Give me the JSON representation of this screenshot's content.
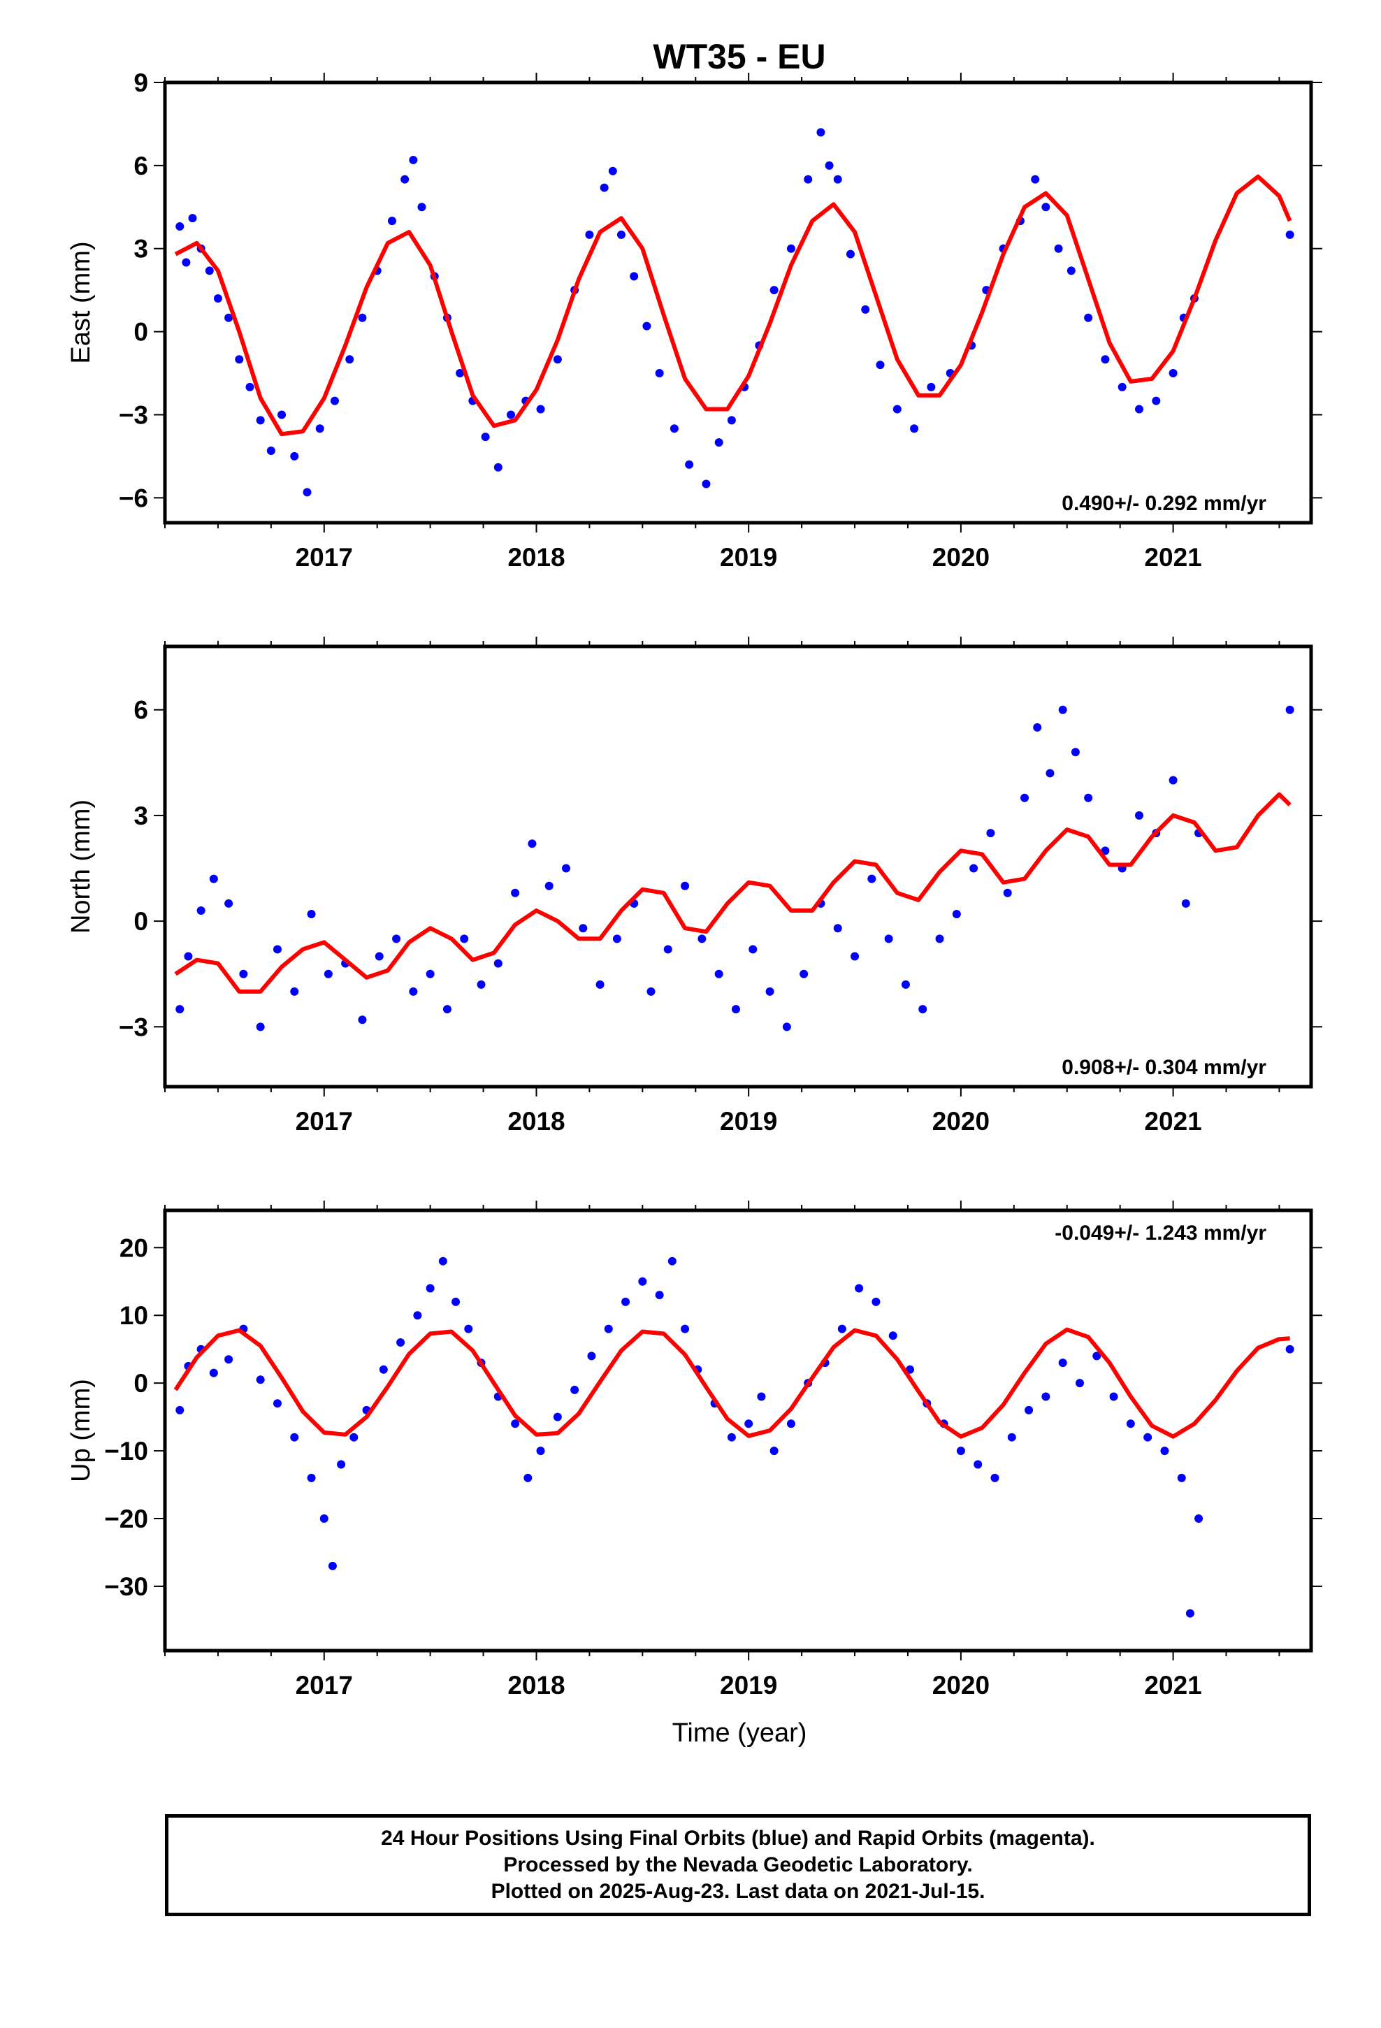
{
  "title": "WT35 - EU",
  "colors": {
    "points": "#0000ff",
    "fit": "#ff0000",
    "frame": "#000000"
  },
  "xaxis": {
    "label": "Time (year)",
    "range": [
      2016.25,
      2021.65
    ],
    "ticks": [
      2017,
      2018,
      2019,
      2020,
      2021
    ]
  },
  "chart_data": [
    {
      "type": "scatter",
      "component": "East",
      "ylabel": "East (mm)",
      "ylim": [
        -6.9,
        9.0
      ],
      "yticks": [
        -6,
        -3,
        0,
        3,
        6,
        9
      ],
      "ytick_labels": [
        "−6",
        "−3",
        "0",
        "3",
        "6",
        "9"
      ],
      "rate_label": "0.490+/- 0.292 mm/yr",
      "rate_position": "bottom-right",
      "series": [
        {
          "role": "fit",
          "x": [
            2016.3,
            2016.4,
            2016.5,
            2016.6,
            2016.7,
            2016.8,
            2016.9,
            2017.0,
            2017.1,
            2017.2,
            2017.3,
            2017.4,
            2017.5,
            2017.6,
            2017.7,
            2017.8,
            2017.9,
            2018.0,
            2018.1,
            2018.2,
            2018.3,
            2018.4,
            2018.5,
            2018.6,
            2018.7,
            2018.8,
            2018.9,
            2019.0,
            2019.1,
            2019.2,
            2019.3,
            2019.4,
            2019.5,
            2019.6,
            2019.7,
            2019.8,
            2019.9,
            2020.0,
            2020.1,
            2020.2,
            2020.3,
            2020.4,
            2020.5,
            2020.6,
            2020.7,
            2020.8,
            2020.9,
            2021.0,
            2021.1,
            2021.2,
            2021.3,
            2021.4,
            2021.5,
            2021.55
          ],
          "values": [
            2.8,
            3.2,
            2.2,
            0.0,
            -2.4,
            -3.7,
            -3.6,
            -2.4,
            -0.5,
            1.6,
            3.2,
            3.6,
            2.4,
            0.0,
            -2.3,
            -3.4,
            -3.2,
            -2.1,
            -0.3,
            1.9,
            3.6,
            4.1,
            3.0,
            0.6,
            -1.7,
            -2.8,
            -2.8,
            -1.6,
            0.3,
            2.4,
            4.0,
            4.6,
            3.6,
            1.3,
            -1.0,
            -2.3,
            -2.3,
            -1.2,
            0.7,
            2.8,
            4.5,
            5.0,
            4.2,
            1.9,
            -0.4,
            -1.8,
            -1.7,
            -0.7,
            1.2,
            3.3,
            5.0,
            5.6,
            4.9,
            4.0
          ]
        },
        {
          "role": "points",
          "x": [
            2016.32,
            2016.35,
            2016.38,
            2016.42,
            2016.46,
            2016.5,
            2016.55,
            2016.6,
            2016.65,
            2016.7,
            2016.75,
            2016.8,
            2016.86,
            2016.92,
            2016.98,
            2017.05,
            2017.12,
            2017.18,
            2017.25,
            2017.32,
            2017.38,
            2017.42,
            2017.46,
            2017.52,
            2017.58,
            2017.64,
            2017.7,
            2017.76,
            2017.82,
            2017.88,
            2017.95,
            2018.02,
            2018.1,
            2018.18,
            2018.25,
            2018.32,
            2018.36,
            2018.4,
            2018.46,
            2018.52,
            2018.58,
            2018.65,
            2018.72,
            2018.8,
            2018.86,
            2018.92,
            2018.98,
            2019.05,
            2019.12,
            2019.2,
            2019.28,
            2019.34,
            2019.38,
            2019.42,
            2019.48,
            2019.55,
            2019.62,
            2019.7,
            2019.78,
            2019.86,
            2019.95,
            2020.05,
            2020.12,
            2020.2,
            2020.28,
            2020.35,
            2020.4,
            2020.46,
            2020.52,
            2020.6,
            2020.68,
            2020.76,
            2020.84,
            2020.92,
            2021.0,
            2021.05,
            2021.1,
            2021.55
          ],
          "values": [
            3.8,
            2.5,
            4.1,
            3.0,
            2.2,
            1.2,
            0.5,
            -1.0,
            -2.0,
            -3.2,
            -4.3,
            -3.0,
            -4.5,
            -5.8,
            -3.5,
            -2.5,
            -1.0,
            0.5,
            2.2,
            4.0,
            5.5,
            6.2,
            4.5,
            2.0,
            0.5,
            -1.5,
            -2.5,
            -3.8,
            -4.9,
            -3.0,
            -2.5,
            -2.8,
            -1.0,
            1.5,
            3.5,
            5.2,
            5.8,
            3.5,
            2.0,
            0.2,
            -1.5,
            -3.5,
            -4.8,
            -5.5,
            -4.0,
            -3.2,
            -2.0,
            -0.5,
            1.5,
            3.0,
            5.5,
            7.2,
            6.0,
            5.5,
            2.8,
            0.8,
            -1.2,
            -2.8,
            -3.5,
            -2.0,
            -1.5,
            -0.5,
            1.5,
            3.0,
            4.0,
            5.5,
            4.5,
            3.0,
            2.2,
            0.5,
            -1.0,
            -2.0,
            -2.8,
            -2.5,
            -1.5,
            0.5,
            1.2,
            3.5
          ]
        }
      ]
    },
    {
      "type": "scatter",
      "component": "North",
      "ylabel": "North (mm)",
      "ylim": [
        -4.7,
        7.8
      ],
      "yticks": [
        -3,
        0,
        3,
        6
      ],
      "ytick_labels": [
        "−3",
        "0",
        "3",
        "6"
      ],
      "rate_label": "0.908+/- 0.304 mm/yr",
      "rate_position": "bottom-right",
      "series": [
        {
          "role": "fit",
          "x": [
            2016.3,
            2016.4,
            2016.5,
            2016.6,
            2016.7,
            2016.8,
            2016.9,
            2017.0,
            2017.1,
            2017.2,
            2017.3,
            2017.4,
            2017.5,
            2017.6,
            2017.7,
            2017.8,
            2017.9,
            2018.0,
            2018.1,
            2018.2,
            2018.3,
            2018.4,
            2018.5,
            2018.6,
            2018.7,
            2018.8,
            2018.9,
            2019.0,
            2019.1,
            2019.2,
            2019.3,
            2019.4,
            2019.5,
            2019.6,
            2019.7,
            2019.8,
            2019.9,
            2020.0,
            2020.1,
            2020.2,
            2020.3,
            2020.4,
            2020.5,
            2020.6,
            2020.7,
            2020.8,
            2020.9,
            2021.0,
            2021.1,
            2021.2,
            2021.3,
            2021.4,
            2021.5,
            2021.55
          ],
          "values": [
            -1.5,
            -1.1,
            -1.2,
            -2.0,
            -2.0,
            -1.3,
            -0.8,
            -0.6,
            -1.1,
            -1.6,
            -1.4,
            -0.6,
            -0.2,
            -0.5,
            -1.1,
            -0.9,
            -0.1,
            0.3,
            0.0,
            -0.5,
            -0.5,
            0.3,
            0.9,
            0.8,
            -0.2,
            -0.3,
            0.5,
            1.1,
            1.0,
            0.3,
            0.3,
            1.1,
            1.7,
            1.6,
            0.8,
            0.6,
            1.4,
            2.0,
            1.9,
            1.1,
            1.2,
            2.0,
            2.6,
            2.4,
            1.6,
            1.6,
            2.4,
            3.0,
            2.8,
            2.0,
            2.1,
            3.0,
            3.6,
            3.3
          ]
        },
        {
          "role": "points",
          "x": [
            2016.32,
            2016.36,
            2016.42,
            2016.48,
            2016.55,
            2016.62,
            2016.7,
            2016.78,
            2016.86,
            2016.94,
            2017.02,
            2017.1,
            2017.18,
            2017.26,
            2017.34,
            2017.42,
            2017.5,
            2017.58,
            2017.66,
            2017.74,
            2017.82,
            2017.9,
            2017.98,
            2018.06,
            2018.14,
            2018.22,
            2018.3,
            2018.38,
            2018.46,
            2018.54,
            2018.62,
            2018.7,
            2018.78,
            2018.86,
            2018.94,
            2019.02,
            2019.1,
            2019.18,
            2019.26,
            2019.34,
            2019.42,
            2019.5,
            2019.58,
            2019.66,
            2019.74,
            2019.82,
            2019.9,
            2019.98,
            2020.06,
            2020.14,
            2020.22,
            2020.3,
            2020.36,
            2020.42,
            2020.48,
            2020.54,
            2020.6,
            2020.68,
            2020.76,
            2020.84,
            2020.92,
            2021.0,
            2021.06,
            2021.12,
            2021.55
          ],
          "values": [
            -2.5,
            -1.0,
            0.3,
            1.2,
            0.5,
            -1.5,
            -3.0,
            -0.8,
            -2.0,
            0.2,
            -1.5,
            -1.2,
            -2.8,
            -1.0,
            -0.5,
            -2.0,
            -1.5,
            -2.5,
            -0.5,
            -1.8,
            -1.2,
            0.8,
            2.2,
            1.0,
            1.5,
            -0.2,
            -1.8,
            -0.5,
            0.5,
            -2.0,
            -0.8,
            1.0,
            -0.5,
            -1.5,
            -2.5,
            -0.8,
            -2.0,
            -3.0,
            -1.5,
            0.5,
            -0.2,
            -1.0,
            1.2,
            -0.5,
            -1.8,
            -2.5,
            -0.5,
            0.2,
            1.5,
            2.5,
            0.8,
            3.5,
            5.5,
            4.2,
            6.0,
            4.8,
            3.5,
            2.0,
            1.5,
            3.0,
            2.5,
            4.0,
            0.5,
            2.5,
            6.0
          ]
        }
      ]
    },
    {
      "type": "scatter",
      "component": "Up",
      "ylabel": "Up (mm)",
      "ylim": [
        -39.5,
        25.5
      ],
      "yticks": [
        -30,
        -20,
        -10,
        0,
        10,
        20
      ],
      "ytick_labels": [
        "−30",
        "−20",
        "−10",
        "0",
        "10",
        "20"
      ],
      "rate_label": "-0.049+/- 1.243 mm/yr",
      "rate_position": "top-right",
      "series": [
        {
          "role": "fit",
          "x": [
            2016.3,
            2016.4,
            2016.5,
            2016.6,
            2016.7,
            2016.8,
            2016.9,
            2017.0,
            2017.1,
            2017.2,
            2017.3,
            2017.4,
            2017.5,
            2017.6,
            2017.7,
            2017.8,
            2017.9,
            2018.0,
            2018.1,
            2018.2,
            2018.3,
            2018.4,
            2018.5,
            2018.6,
            2018.7,
            2018.8,
            2018.9,
            2019.0,
            2019.1,
            2019.2,
            2019.3,
            2019.4,
            2019.5,
            2019.6,
            2019.7,
            2019.8,
            2019.9,
            2020.0,
            2020.1,
            2020.2,
            2020.3,
            2020.4,
            2020.5,
            2020.6,
            2020.7,
            2020.8,
            2020.9,
            2021.0,
            2021.1,
            2021.2,
            2021.3,
            2021.4,
            2021.5,
            2021.55
          ],
          "values": [
            -1.0,
            3.8,
            7.0,
            7.8,
            5.5,
            0.8,
            -4.2,
            -7.3,
            -7.6,
            -5.0,
            -0.5,
            4.3,
            7.3,
            7.6,
            4.8,
            0.0,
            -4.8,
            -7.6,
            -7.4,
            -4.5,
            0.2,
            4.8,
            7.6,
            7.3,
            4.2,
            -0.6,
            -5.3,
            -7.8,
            -7.0,
            -3.8,
            0.8,
            5.3,
            7.8,
            7.0,
            3.5,
            -1.2,
            -5.8,
            -7.9,
            -6.6,
            -3.2,
            1.5,
            5.8,
            7.9,
            6.8,
            3.0,
            -2.0,
            -6.3,
            -7.9,
            -6.0,
            -2.5,
            1.8,
            5.2,
            6.5,
            6.6
          ]
        },
        {
          "role": "points",
          "x": [
            2016.32,
            2016.36,
            2016.42,
            2016.48,
            2016.55,
            2016.62,
            2016.7,
            2016.78,
            2016.86,
            2016.94,
            2017.0,
            2017.04,
            2017.08,
            2017.14,
            2017.2,
            2017.28,
            2017.36,
            2017.44,
            2017.5,
            2017.56,
            2017.62,
            2017.68,
            2017.74,
            2017.82,
            2017.9,
            2017.96,
            2018.02,
            2018.1,
            2018.18,
            2018.26,
            2018.34,
            2018.42,
            2018.5,
            2018.58,
            2018.64,
            2018.7,
            2018.76,
            2018.84,
            2018.92,
            2019.0,
            2019.06,
            2019.12,
            2019.2,
            2019.28,
            2019.36,
            2019.44,
            2019.52,
            2019.6,
            2019.68,
            2019.76,
            2019.84,
            2019.92,
            2020.0,
            2020.08,
            2020.16,
            2020.24,
            2020.32,
            2020.4,
            2020.48,
            2020.56,
            2020.64,
            2020.72,
            2020.8,
            2020.88,
            2020.96,
            2021.04,
            2021.08,
            2021.12,
            2021.55
          ],
          "values": [
            -4.0,
            2.5,
            5.0,
            1.5,
            3.5,
            8.0,
            0.5,
            -3.0,
            -8.0,
            -14.0,
            -20.0,
            -27.0,
            -12.0,
            -8.0,
            -4.0,
            2.0,
            6.0,
            10.0,
            14.0,
            18.0,
            12.0,
            8.0,
            3.0,
            -2.0,
            -6.0,
            -14.0,
            -10.0,
            -5.0,
            -1.0,
            4.0,
            8.0,
            12.0,
            15.0,
            13.0,
            18.0,
            8.0,
            2.0,
            -3.0,
            -8.0,
            -6.0,
            -2.0,
            -10.0,
            -6.0,
            0.0,
            3.0,
            8.0,
            14.0,
            12.0,
            7.0,
            2.0,
            -3.0,
            -6.0,
            -10.0,
            -12.0,
            -14.0,
            -8.0,
            -4.0,
            -2.0,
            3.0,
            0.0,
            4.0,
            -2.0,
            -6.0,
            -8.0,
            -10.0,
            -14.0,
            -34.0,
            -20.0,
            5.0
          ]
        }
      ]
    }
  ],
  "caption": {
    "line1": "24 Hour Positions Using Final Orbits (blue) and Rapid Orbits (magenta).",
    "line2": "Processed by the Nevada Geodetic Laboratory.",
    "line3": "Plotted on 2025-Aug-23. Last data on 2021-Jul-15."
  }
}
